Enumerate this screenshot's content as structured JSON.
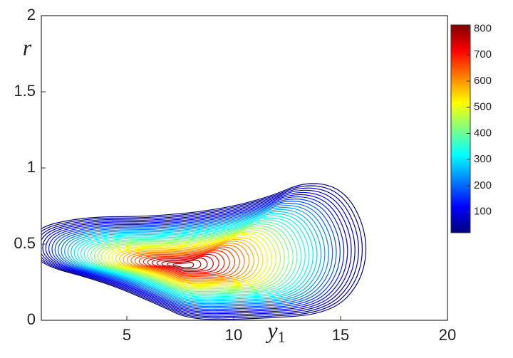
{
  "chart_data": {
    "type": "contour",
    "x_label": "y",
    "x_label_sub": "1",
    "y_label": "r",
    "xlim": [
      1,
      20
    ],
    "xticks": [
      5,
      10,
      15,
      20
    ],
    "ylim": [
      0,
      2
    ],
    "yticks": [
      0,
      0.5,
      1,
      1.5,
      2
    ],
    "clim": [
      20,
      815
    ],
    "cticks": [
      100,
      200,
      300,
      400,
      500,
      600,
      700,
      800
    ],
    "colormap": "jet",
    "levels": [
      20,
      40,
      60,
      80,
      100,
      120,
      140,
      160,
      180,
      200,
      220,
      240,
      260,
      280,
      300,
      320,
      340,
      360,
      380,
      400,
      420,
      440,
      460,
      480,
      500,
      520,
      540,
      560,
      580,
      600,
      620,
      640,
      660,
      680,
      700,
      720,
      740,
      760,
      780,
      800
    ]
  }
}
